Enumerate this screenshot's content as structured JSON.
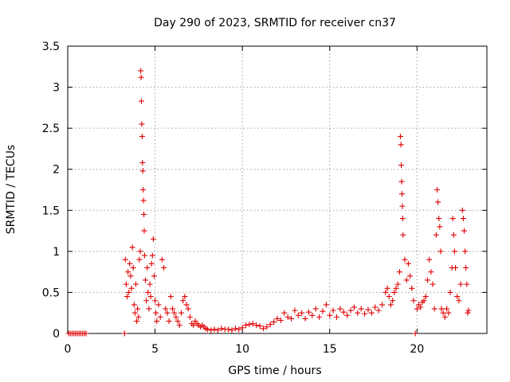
{
  "chart_data": {
    "type": "scatter",
    "title": "Day 290 of 2023, SRMTID for receiver cn37",
    "xlabel": "GPS time / hours",
    "ylabel": "SRMTID / TECUs",
    "xlim": [
      0,
      24
    ],
    "ylim": [
      0,
      3.5
    ],
    "grid": true,
    "x_ticks": [
      "0",
      "5",
      "10",
      "15",
      "20"
    ],
    "y_ticks": [
      "0",
      "0.5",
      "1",
      "1.5",
      "2",
      "2.5",
      "3",
      "3.5"
    ],
    "marker": "plus",
    "marker_color": "#e00000",
    "series": [
      {
        "name": "SRMTID",
        "points": [
          [
            0.05,
            0
          ],
          [
            0.15,
            0
          ],
          [
            0.25,
            0
          ],
          [
            0.35,
            0
          ],
          [
            0.45,
            0
          ],
          [
            0.55,
            0
          ],
          [
            0.65,
            0
          ],
          [
            0.75,
            0
          ],
          [
            0.85,
            0
          ],
          [
            0.95,
            0
          ],
          [
            1.05,
            0
          ],
          [
            3.25,
            0
          ],
          [
            3.3,
            0.9
          ],
          [
            3.35,
            0.6
          ],
          [
            3.4,
            0.45
          ],
          [
            3.45,
            0.75
          ],
          [
            3.5,
            0.5
          ],
          [
            3.55,
            0.85
          ],
          [
            3.6,
            0.7
          ],
          [
            3.65,
            0.55
          ],
          [
            3.7,
            1.05
          ],
          [
            3.75,
            0.8
          ],
          [
            3.8,
            0.35
          ],
          [
            3.85,
            0.25
          ],
          [
            3.9,
            0.6
          ],
          [
            3.95,
            0.15
          ],
          [
            4.0,
            0.3
          ],
          [
            4.05,
            0.2
          ],
          [
            4.1,
            0.9
          ],
          [
            4.15,
            1.0
          ],
          [
            4.18,
            3.2
          ],
          [
            4.2,
            3.12
          ],
          [
            4.22,
            2.83
          ],
          [
            4.24,
            2.55
          ],
          [
            4.26,
            2.4
          ],
          [
            4.28,
            2.08
          ],
          [
            4.3,
            1.98
          ],
          [
            4.32,
            1.75
          ],
          [
            4.34,
            1.62
          ],
          [
            4.36,
            1.45
          ],
          [
            4.38,
            1.25
          ],
          [
            4.4,
            0.95
          ],
          [
            4.45,
            0.65
          ],
          [
            4.5,
            0.4
          ],
          [
            4.55,
            0.8
          ],
          [
            4.6,
            0.5
          ],
          [
            4.65,
            0.3
          ],
          [
            4.7,
            0.6
          ],
          [
            4.75,
            0.45
          ],
          [
            4.8,
            0.85
          ],
          [
            4.85,
            0.95
          ],
          [
            4.9,
            1.15
          ],
          [
            4.95,
            0.7
          ],
          [
            5.0,
            0.4
          ],
          [
            5.05,
            0.25
          ],
          [
            5.1,
            0.15
          ],
          [
            5.2,
            0.35
          ],
          [
            5.3,
            0.2
          ],
          [
            5.4,
            0.9
          ],
          [
            5.5,
            0.8
          ],
          [
            5.6,
            0.3
          ],
          [
            5.7,
            0.25
          ],
          [
            5.8,
            0.15
          ],
          [
            5.9,
            0.45
          ],
          [
            6.0,
            0.3
          ],
          [
            6.1,
            0.25
          ],
          [
            6.2,
            0.2
          ],
          [
            6.3,
            0.15
          ],
          [
            6.4,
            0.1
          ],
          [
            6.5,
            0.25
          ],
          [
            6.6,
            0.4
          ],
          [
            6.7,
            0.45
          ],
          [
            6.8,
            0.35
          ],
          [
            6.9,
            0.3
          ],
          [
            7.0,
            0.2
          ],
          [
            7.1,
            0.12
          ],
          [
            7.2,
            0.1
          ],
          [
            7.3,
            0.15
          ],
          [
            7.4,
            0.12
          ],
          [
            7.5,
            0.1
          ],
          [
            7.6,
            0.08
          ],
          [
            7.7,
            0.1
          ],
          [
            7.8,
            0.08
          ],
          [
            7.9,
            0.06
          ],
          [
            8.0,
            0.05
          ],
          [
            8.2,
            0.04
          ],
          [
            8.4,
            0.05
          ],
          [
            8.6,
            0.04
          ],
          [
            8.8,
            0.06
          ],
          [
            9.0,
            0.05
          ],
          [
            9.2,
            0.05
          ],
          [
            9.4,
            0.04
          ],
          [
            9.6,
            0.06
          ],
          [
            9.8,
            0.05
          ],
          [
            10.0,
            0.07
          ],
          [
            10.2,
            0.1
          ],
          [
            10.4,
            0.11
          ],
          [
            10.6,
            0.12
          ],
          [
            10.8,
            0.1
          ],
          [
            11.0,
            0.09
          ],
          [
            11.2,
            0.06
          ],
          [
            11.4,
            0.08
          ],
          [
            11.6,
            0.11
          ],
          [
            11.8,
            0.14
          ],
          [
            12.0,
            0.18
          ],
          [
            12.2,
            0.16
          ],
          [
            12.4,
            0.25
          ],
          [
            12.6,
            0.2
          ],
          [
            12.8,
            0.18
          ],
          [
            13.0,
            0.28
          ],
          [
            13.2,
            0.22
          ],
          [
            13.4,
            0.25
          ],
          [
            13.6,
            0.18
          ],
          [
            13.8,
            0.26
          ],
          [
            14.0,
            0.22
          ],
          [
            14.2,
            0.3
          ],
          [
            14.4,
            0.2
          ],
          [
            14.6,
            0.27
          ],
          [
            14.8,
            0.35
          ],
          [
            15.0,
            0.22
          ],
          [
            15.2,
            0.28
          ],
          [
            15.4,
            0.2
          ],
          [
            15.6,
            0.3
          ],
          [
            15.8,
            0.26
          ],
          [
            16.0,
            0.22
          ],
          [
            16.2,
            0.28
          ],
          [
            16.4,
            0.32
          ],
          [
            16.6,
            0.25
          ],
          [
            16.8,
            0.3
          ],
          [
            17.0,
            0.24
          ],
          [
            17.2,
            0.29
          ],
          [
            17.4,
            0.25
          ],
          [
            17.6,
            0.32
          ],
          [
            17.8,
            0.28
          ],
          [
            18.0,
            0.35
          ],
          [
            18.2,
            0.5
          ],
          [
            18.3,
            0.55
          ],
          [
            18.4,
            0.45
          ],
          [
            18.5,
            0.35
          ],
          [
            18.6,
            0.4
          ],
          [
            18.7,
            0.5
          ],
          [
            18.8,
            0.55
          ],
          [
            18.9,
            0.6
          ],
          [
            19.0,
            0.75
          ],
          [
            19.05,
            2.4
          ],
          [
            19.08,
            2.3
          ],
          [
            19.1,
            2.05
          ],
          [
            19.12,
            1.85
          ],
          [
            19.14,
            1.7
          ],
          [
            19.16,
            1.55
          ],
          [
            19.18,
            1.4
          ],
          [
            19.2,
            1.2
          ],
          [
            19.3,
            0.9
          ],
          [
            19.4,
            0.65
          ],
          [
            19.5,
            0.85
          ],
          [
            19.6,
            0.7
          ],
          [
            19.7,
            0.55
          ],
          [
            19.8,
            0.4
          ],
          [
            19.9,
            0.0
          ],
          [
            20.0,
            0.3
          ],
          [
            20.1,
            0.35
          ],
          [
            20.2,
            0.32
          ],
          [
            20.3,
            0.38
          ],
          [
            20.4,
            0.4
          ],
          [
            20.5,
            0.45
          ],
          [
            20.6,
            0.65
          ],
          [
            20.7,
            0.9
          ],
          [
            20.8,
            0.75
          ],
          [
            20.9,
            0.6
          ],
          [
            21.0,
            0.3
          ],
          [
            21.1,
            1.2
          ],
          [
            21.15,
            1.75
          ],
          [
            21.2,
            1.6
          ],
          [
            21.25,
            1.4
          ],
          [
            21.3,
            1.3
          ],
          [
            21.35,
            1.0
          ],
          [
            21.4,
            0.3
          ],
          [
            21.5,
            0.25
          ],
          [
            21.6,
            0.2
          ],
          [
            21.7,
            0.3
          ],
          [
            21.8,
            0.25
          ],
          [
            21.9,
            0.5
          ],
          [
            22.0,
            0.8
          ],
          [
            22.05,
            1.4
          ],
          [
            22.1,
            1.2
          ],
          [
            22.15,
            1.0
          ],
          [
            22.2,
            0.8
          ],
          [
            22.3,
            0.45
          ],
          [
            22.4,
            0.4
          ],
          [
            22.5,
            0.6
          ],
          [
            22.6,
            1.5
          ],
          [
            22.65,
            1.4
          ],
          [
            22.7,
            1.25
          ],
          [
            22.75,
            1.0
          ],
          [
            22.8,
            0.8
          ],
          [
            22.85,
            0.6
          ],
          [
            22.9,
            0.25
          ],
          [
            22.95,
            0.28
          ]
        ]
      }
    ]
  }
}
